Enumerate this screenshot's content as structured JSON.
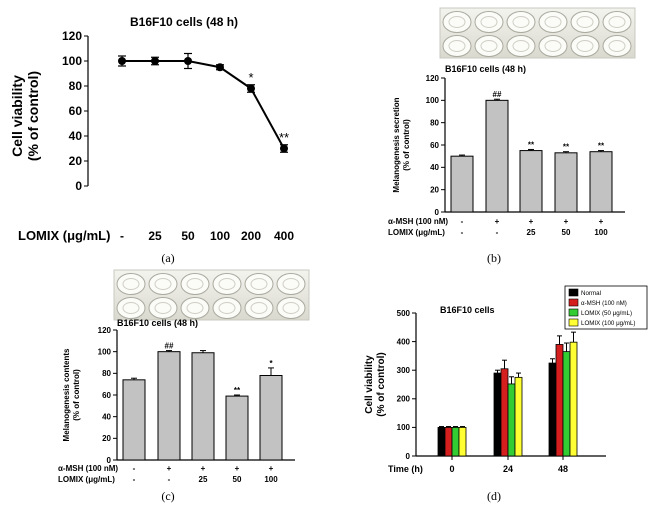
{
  "chart_data": [
    {
      "panel": "(a)",
      "type": "line",
      "title": "B16F10 cells (48 h)",
      "ylabel": "Cell viability\n(% of control)",
      "ylim": [
        0,
        120
      ],
      "yticks": [
        "0",
        "20",
        "40",
        "60",
        "80",
        "100",
        "120"
      ],
      "row_labels": [
        "LOMIX (μg/mL)"
      ],
      "row_values": [
        [
          "-",
          "25",
          "50",
          "100",
          "200",
          "400"
        ]
      ],
      "values": [
        100,
        100,
        100,
        95,
        78,
        30
      ],
      "errors": [
        4,
        3,
        6,
        2,
        3,
        3
      ],
      "annotations": [
        "",
        "",
        "",
        "",
        "*",
        "**"
      ]
    },
    {
      "panel": "(b)",
      "type": "bar",
      "title": "B16F10 cells (48 h)",
      "ylabel": "Melanogenesis secretion\n(% of control)",
      "ylim": [
        0,
        120
      ],
      "yticks": [
        "0",
        "20",
        "40",
        "60",
        "80",
        "100",
        "120"
      ],
      "row_labels": [
        "α-MSH (100 nM)",
        "LOMIX (μg/mL)"
      ],
      "row_values": [
        [
          "-",
          "+",
          "+",
          "+",
          "+"
        ],
        [
          "-",
          "-",
          "25",
          "50",
          "100"
        ]
      ],
      "values": [
        50,
        100,
        55,
        53,
        54
      ],
      "errors": [
        1,
        1,
        1,
        1,
        1
      ],
      "annotations": [
        "",
        "##",
        "**",
        "**",
        "**"
      ]
    },
    {
      "panel": "(c)",
      "type": "bar",
      "title": "B16F10 cells (48 h)",
      "ylabel": "Melanogenesis contents\n(% of control)",
      "ylim": [
        0,
        120
      ],
      "yticks": [
        "0",
        "20",
        "40",
        "60",
        "80",
        "100",
        "120"
      ],
      "row_labels": [
        "α-MSH (100 nM)",
        "LOMIX (μg/mL)"
      ],
      "row_values": [
        [
          "-",
          "+",
          "+",
          "+",
          "+"
        ],
        [
          "-",
          "-",
          "25",
          "50",
          "100"
        ]
      ],
      "values": [
        74,
        100,
        99,
        59,
        78
      ],
      "errors": [
        1.5,
        1,
        2,
        1,
        7
      ],
      "annotations": [
        "",
        "##",
        "",
        "**",
        "*"
      ]
    },
    {
      "panel": "(d)",
      "type": "bar",
      "title": "B16F10 cells",
      "ylabel": "Cell viability\n(% of control)",
      "xlabel": "Time (h)",
      "ylim": [
        0,
        500
      ],
      "yticks": [
        "0",
        "100",
        "200",
        "300",
        "400",
        "500"
      ],
      "categories": [
        "0",
        "24",
        "48"
      ],
      "series": [
        {
          "name": "Normal",
          "values": [
            100,
            290,
            325
          ],
          "errors": [
            3,
            10,
            15
          ]
        },
        {
          "name": "α-MSH (100 nM)",
          "values": [
            100,
            305,
            390
          ],
          "errors": [
            3,
            30,
            30
          ]
        },
        {
          "name": "LOMIX (50 μg/mL)",
          "values": [
            100,
            252,
            365
          ],
          "errors": [
            3,
            25,
            30
          ]
        },
        {
          "name": "LOMIX (100 μg/mL)",
          "values": [
            100,
            275,
            398
          ],
          "errors": [
            3,
            15,
            35
          ]
        }
      ],
      "legend_position": "top-right"
    }
  ],
  "colors": {
    "bar_gray": "#c2c2c2",
    "normal": "#000000",
    "msh": "#d51f1f",
    "lomix50": "#33cc33",
    "lomix100": "#ffff33"
  },
  "captions": [
    "(a)",
    "(b)",
    "(c)",
    "(d)"
  ]
}
